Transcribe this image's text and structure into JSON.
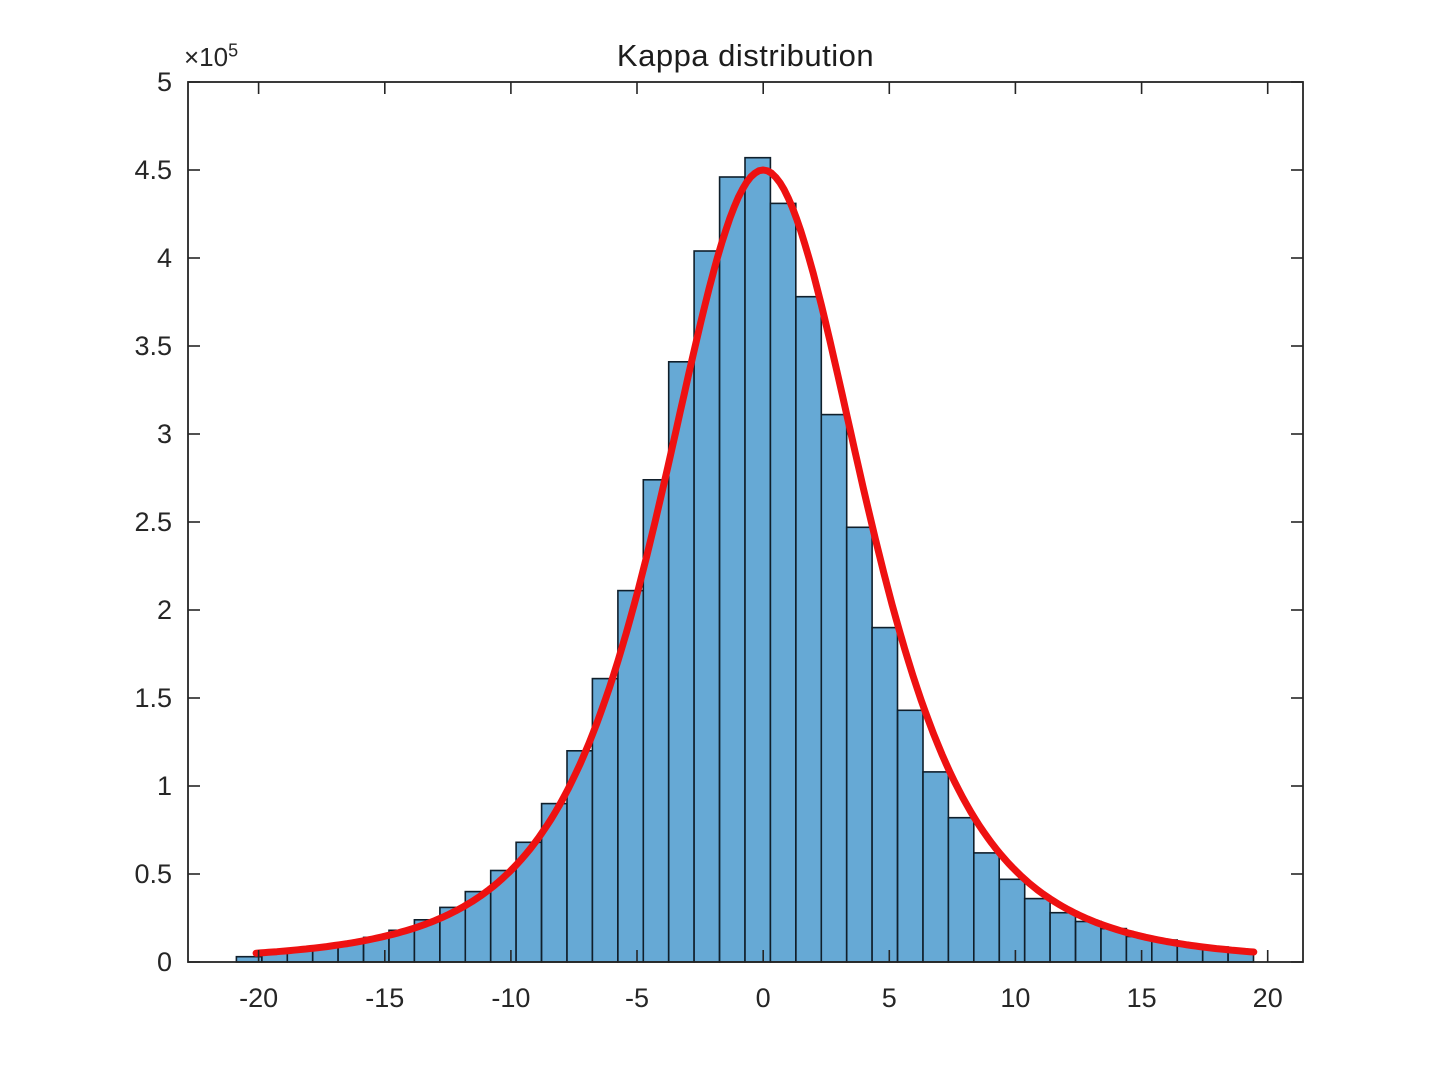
{
  "title": "Kappa distribution",
  "axes": {
    "y_exponent_prefix": "×10",
    "y_exponent_sup": "5"
  },
  "chart_data": {
    "type": "bar",
    "title": "Kappa distribution",
    "xlabel": "",
    "ylabel": "",
    "xlim": [
      -22.8,
      21.4
    ],
    "ylim_1e5": [
      0,
      5
    ],
    "grid": false,
    "legend": "none",
    "x_ticks": [
      -20,
      -15,
      -10,
      -5,
      0,
      5,
      10,
      15,
      20
    ],
    "y_ticks_1e5": [
      0,
      0.5,
      1,
      1.5,
      2,
      2.5,
      3,
      3.5,
      4,
      4.5,
      5
    ],
    "y_scale_note": "y values are in units of 1e5",
    "histogram": {
      "bin_start": -20.88,
      "bin_width": 1.008,
      "counts_1e5": [
        0.03,
        0.05,
        0.07,
        0.09,
        0.11,
        0.14,
        0.18,
        0.24,
        0.31,
        0.4,
        0.52,
        0.68,
        0.9,
        1.2,
        1.61,
        2.11,
        2.74,
        3.41,
        4.04,
        4.46,
        4.57,
        4.31,
        3.78,
        3.11,
        2.47,
        1.9,
        1.43,
        1.08,
        0.82,
        0.62,
        0.47,
        0.36,
        0.28,
        0.23,
        0.19,
        0.145,
        0.125,
        0.1,
        0.085,
        0.07
      ],
      "face_color": "#66A9D5",
      "edge_color": "#101f2b"
    },
    "fit_curve": {
      "name": "kappa-fit-line",
      "color": "#EE1111",
      "line_width": 7,
      "peak_1e5": 4.5,
      "scale_sq": 60,
      "exponent": 2.2,
      "x_start": -20.1,
      "x_end": 19.45
    },
    "frame_color": "#252525",
    "tick_label_color": "#262626"
  }
}
